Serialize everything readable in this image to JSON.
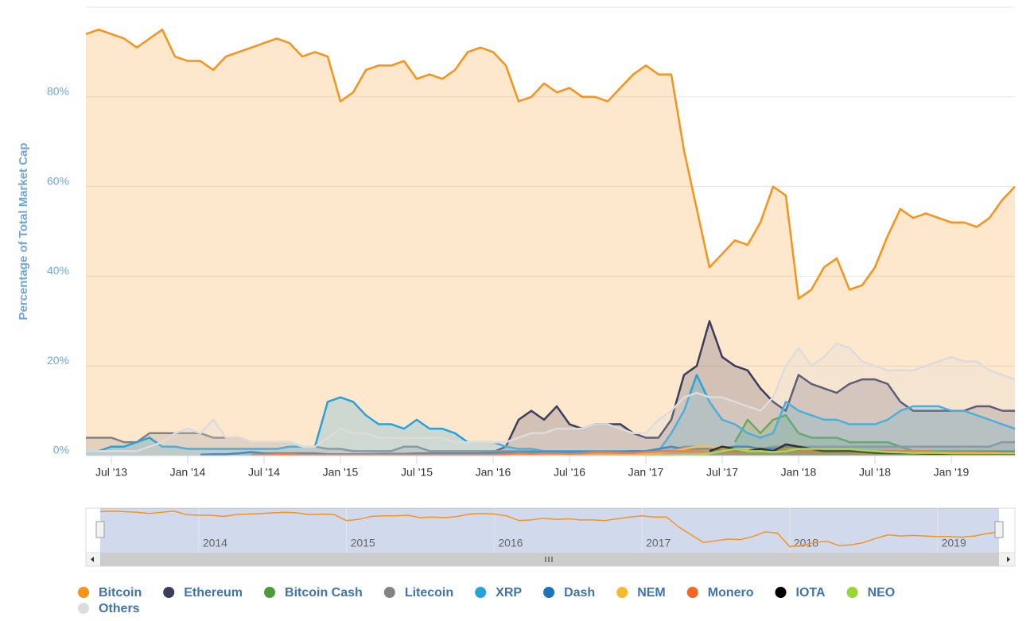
{
  "chart_data": {
    "type": "area",
    "y_axis_label": "Percentage of Total Market Cap",
    "x": [
      "2013-05",
      "2013-06",
      "2013-07",
      "2013-08",
      "2013-09",
      "2013-10",
      "2013-11",
      "2013-12",
      "2014-01",
      "2014-02",
      "2014-03",
      "2014-04",
      "2014-05",
      "2014-06",
      "2014-07",
      "2014-08",
      "2014-09",
      "2014-10",
      "2014-11",
      "2014-12",
      "2015-01",
      "2015-02",
      "2015-03",
      "2015-04",
      "2015-05",
      "2015-06",
      "2015-07",
      "2015-08",
      "2015-09",
      "2015-10",
      "2015-11",
      "2015-12",
      "2016-01",
      "2016-02",
      "2016-03",
      "2016-04",
      "2016-05",
      "2016-06",
      "2016-07",
      "2016-08",
      "2016-09",
      "2016-10",
      "2016-11",
      "2016-12",
      "2017-01",
      "2017-02",
      "2017-03",
      "2017-04",
      "2017-05",
      "2017-06",
      "2017-07",
      "2017-08",
      "2017-09",
      "2017-10",
      "2017-11",
      "2017-12",
      "2018-01",
      "2018-02",
      "2018-03",
      "2018-04",
      "2018-05",
      "2018-06",
      "2018-07",
      "2018-08",
      "2018-09",
      "2018-10",
      "2018-11",
      "2018-12",
      "2019-01",
      "2019-02",
      "2019-03",
      "2019-04",
      "2019-05",
      "2019-06"
    ],
    "xlim": [
      "2013-05",
      "2019-06"
    ],
    "xticks": [
      {
        "value": "2013-07",
        "label": "Jul '13"
      },
      {
        "value": "2014-01",
        "label": "Jan '14"
      },
      {
        "value": "2014-07",
        "label": "Jul '14"
      },
      {
        "value": "2015-01",
        "label": "Jan '15"
      },
      {
        "value": "2015-07",
        "label": "Jul '15"
      },
      {
        "value": "2016-01",
        "label": "Jan '16"
      },
      {
        "value": "2016-07",
        "label": "Jul '16"
      },
      {
        "value": "2017-01",
        "label": "Jan '17"
      },
      {
        "value": "2017-07",
        "label": "Jul '17"
      },
      {
        "value": "2018-01",
        "label": "Jan '18"
      },
      {
        "value": "2018-07",
        "label": "Jul '18"
      },
      {
        "value": "2019-01",
        "label": "Jan '19"
      }
    ],
    "ylim": [
      0,
      100
    ],
    "yticks": [
      {
        "value": 0,
        "label": "0%"
      },
      {
        "value": 20,
        "label": "20%"
      },
      {
        "value": 40,
        "label": "40%"
      },
      {
        "value": 60,
        "label": "60%"
      },
      {
        "value": 80,
        "label": "80%"
      }
    ],
    "grid": true,
    "legend": "bottom",
    "series": [
      {
        "name": "Bitcoin",
        "color": "#f7931a",
        "values": [
          94,
          95,
          94,
          93,
          91,
          93,
          95,
          89,
          88,
          88,
          86,
          89,
          90,
          91,
          92,
          93,
          92,
          89,
          90,
          89,
          79,
          81,
          86,
          87,
          87,
          88,
          84,
          85,
          84,
          86,
          90,
          91,
          90,
          87,
          79,
          80,
          83,
          81,
          82,
          80,
          80,
          79,
          82,
          85,
          87,
          85,
          85,
          68,
          55,
          42,
          45,
          48,
          47,
          52,
          60,
          58,
          35,
          37,
          42,
          44,
          37,
          38,
          42,
          49,
          55,
          53,
          54,
          53,
          52,
          52,
          51,
          53,
          57,
          60
        ]
      },
      {
        "name": "Ethereum",
        "color": "#3c3c5d",
        "values": [
          null,
          null,
          null,
          null,
          null,
          null,
          null,
          null,
          null,
          null,
          null,
          null,
          null,
          null,
          null,
          null,
          null,
          null,
          null,
          null,
          null,
          null,
          null,
          null,
          null,
          null,
          null,
          0.5,
          0.5,
          0.3,
          0.3,
          0.5,
          0.8,
          2,
          8,
          10,
          8,
          11,
          7,
          6,
          7,
          7,
          7,
          5,
          4,
          4,
          8,
          18,
          20,
          30,
          22,
          20,
          19,
          15,
          12,
          10,
          18,
          16,
          15,
          14,
          16,
          17,
          17,
          16,
          12,
          10,
          10,
          10,
          10,
          10,
          11,
          11,
          10,
          10
        ]
      },
      {
        "name": "Bitcoin Cash",
        "color": "#4b9b3a",
        "values": [
          null,
          null,
          null,
          null,
          null,
          null,
          null,
          null,
          null,
          null,
          null,
          null,
          null,
          null,
          null,
          null,
          null,
          null,
          null,
          null,
          null,
          null,
          null,
          null,
          null,
          null,
          null,
          null,
          null,
          null,
          null,
          null,
          null,
          null,
          null,
          null,
          null,
          null,
          null,
          null,
          null,
          null,
          null,
          null,
          null,
          null,
          null,
          null,
          null,
          null,
          null,
          3,
          8,
          5,
          8,
          9,
          5,
          4,
          4,
          4,
          3,
          3,
          3,
          3,
          2,
          1,
          1,
          1,
          1,
          1,
          1,
          1,
          1,
          1
        ]
      },
      {
        "name": "Litecoin",
        "color": "#838383",
        "values": [
          4,
          4,
          4,
          3,
          3,
          5,
          5,
          5,
          5,
          5,
          4,
          4,
          4,
          3,
          3,
          3,
          3,
          2,
          2,
          1.5,
          1.5,
          1,
          1,
          1,
          1,
          2,
          2,
          1,
          1,
          1,
          1,
          1,
          1,
          1,
          1,
          1,
          1,
          1,
          1,
          1,
          1,
          1,
          1,
          1,
          1,
          1,
          1,
          2,
          2,
          1.5,
          1.8,
          2,
          2,
          1.5,
          2,
          2,
          2,
          2,
          2,
          2,
          2,
          2,
          2,
          2,
          2,
          2,
          2,
          2,
          2,
          2,
          2,
          2,
          3,
          3
        ]
      },
      {
        "name": "XRP",
        "color": "#27a2db",
        "values": [
          1,
          1,
          2,
          2,
          3,
          4,
          2,
          2,
          1.5,
          1.5,
          1.5,
          1.5,
          1.5,
          1.5,
          1.5,
          1.5,
          2,
          2,
          2,
          12,
          13,
          12,
          9,
          7,
          7,
          6,
          8,
          6,
          6,
          5,
          3,
          3,
          3,
          2,
          1.5,
          1.5,
          1,
          1,
          1,
          1,
          1,
          1,
          1,
          1,
          1,
          1,
          5,
          10,
          18,
          12,
          8,
          7,
          5,
          4,
          5,
          12,
          10,
          9,
          8,
          8,
          7,
          7,
          7,
          8,
          10,
          11,
          11,
          11,
          10,
          10,
          9,
          8,
          7,
          6
        ]
      },
      {
        "name": "Dash",
        "color": "#1c75bc",
        "values": [
          null,
          null,
          null,
          null,
          null,
          null,
          null,
          null,
          null,
          0.2,
          0.3,
          0.3,
          0.5,
          0.8,
          0.5,
          0.5,
          0.5,
          0.5,
          0.5,
          0.3,
          0.3,
          0.3,
          0.3,
          0.4,
          0.4,
          0.4,
          0.5,
          0.5,
          0.5,
          0.5,
          0.5,
          0.5,
          0.6,
          0.6,
          0.7,
          0.8,
          0.8,
          0.8,
          0.8,
          0.8,
          0.8,
          0.8,
          0.8,
          1,
          1,
          1.5,
          2,
          1.5,
          1.5,
          1.5,
          1.5,
          2,
          2,
          1.5,
          1.5,
          1.5,
          1.5,
          1.5,
          1.5,
          1.5,
          1.5,
          1.2,
          1,
          1,
          1,
          1,
          0.8,
          0.8,
          0.8,
          0.8,
          0.8,
          0.8,
          0.8,
          0.8
        ]
      },
      {
        "name": "NEM",
        "color": "#f9b82e",
        "values": [
          null,
          null,
          null,
          null,
          null,
          null,
          null,
          null,
          null,
          null,
          null,
          null,
          null,
          null,
          null,
          null,
          null,
          null,
          null,
          null,
          null,
          null,
          null,
          0.1,
          0.1,
          0.1,
          0.1,
          0.1,
          0.1,
          0.1,
          0.1,
          0.1,
          0.1,
          0.1,
          0.1,
          0.1,
          0.1,
          0.2,
          0.2,
          0.2,
          0.2,
          0.2,
          0.2,
          0.2,
          0.3,
          0.5,
          1,
          1.5,
          2,
          2,
          1.5,
          1.5,
          1.5,
          1,
          1,
          1.5,
          1.5,
          1,
          1,
          1,
          0.8,
          0.6,
          0.5,
          0.4,
          0.4,
          0.4,
          0.3,
          0.3,
          0.3,
          0.3,
          0.3,
          0.3,
          0.3,
          0.3
        ]
      },
      {
        "name": "Monero",
        "color": "#f26822",
        "values": [
          null,
          null,
          null,
          null,
          null,
          null,
          null,
          null,
          null,
          null,
          null,
          null,
          null,
          0.2,
          0.2,
          0.3,
          0.3,
          0.2,
          0.2,
          0.2,
          0.2,
          0.2,
          0.2,
          0.2,
          0.2,
          0.2,
          0.2,
          0.2,
          0.2,
          0.2,
          0.2,
          0.2,
          0.2,
          0.3,
          0.5,
          0.4,
          0.5,
          0.5,
          0.4,
          0.5,
          0.7,
          0.7,
          0.6,
          0.6,
          0.8,
          0.9,
          1,
          1,
          1,
          0.8,
          0.9,
          1,
          1,
          1,
          1,
          1.2,
          1,
          1,
          1,
          1,
          1,
          1,
          1,
          1,
          1,
          1,
          1,
          0.8,
          0.8,
          0.8,
          0.7,
          0.7,
          0.6,
          0.6
        ]
      },
      {
        "name": "IOTA",
        "color": "#000000",
        "values": [
          null,
          null,
          null,
          null,
          null,
          null,
          null,
          null,
          null,
          null,
          null,
          null,
          null,
          null,
          null,
          null,
          null,
          null,
          null,
          null,
          null,
          null,
          null,
          null,
          null,
          null,
          null,
          null,
          null,
          null,
          null,
          null,
          null,
          null,
          null,
          null,
          null,
          null,
          null,
          null,
          null,
          null,
          null,
          null,
          null,
          null,
          null,
          null,
          null,
          1,
          2,
          1.5,
          1,
          1.5,
          1,
          2.5,
          2,
          1.5,
          1,
          1,
          1,
          0.8,
          0.6,
          0.5,
          0.5,
          0.5,
          0.4,
          0.4,
          0.4,
          0.4,
          0.4,
          0.4,
          0.4,
          0.4
        ]
      },
      {
        "name": "NEO",
        "color": "#9ad436",
        "values": [
          null,
          null,
          null,
          null,
          null,
          null,
          null,
          null,
          null,
          null,
          null,
          null,
          null,
          null,
          null,
          null,
          null,
          null,
          null,
          null,
          null,
          null,
          null,
          null,
          null,
          null,
          null,
          null,
          null,
          null,
          null,
          null,
          null,
          null,
          null,
          null,
          null,
          null,
          null,
          null,
          null,
          null,
          null,
          null,
          0.1,
          0.1,
          0.1,
          0.2,
          0.2,
          0.5,
          1,
          1.5,
          1,
          1,
          0.8,
          1,
          1.5,
          1.5,
          1.5,
          1.5,
          1.5,
          1.2,
          1,
          0.8,
          0.7,
          0.6,
          0.6,
          0.6,
          0.5,
          0.5,
          0.5,
          0.5,
          0.5,
          0.5
        ]
      },
      {
        "name": "Others",
        "color": "#dcdcdc",
        "values": [
          1,
          1,
          1,
          1,
          1,
          2,
          3,
          5,
          6,
          5,
          8,
          4,
          4,
          3,
          3,
          3,
          3,
          2,
          2,
          4,
          6,
          5,
          5,
          4,
          4,
          4,
          4,
          4,
          4,
          3,
          3,
          3,
          3,
          3,
          4,
          5,
          5,
          6,
          6,
          6,
          7,
          7,
          6,
          5,
          5,
          8,
          10,
          13,
          14,
          13,
          13,
          12,
          11,
          10,
          13,
          20,
          24,
          20,
          22,
          25,
          24,
          21,
          20,
          19,
          19,
          19,
          20,
          21,
          22,
          21,
          21,
          19,
          18,
          17
        ]
      }
    ],
    "navigator": {
      "ylim": [
        25,
        100
      ],
      "xticks": [
        {
          "value": "2014-01",
          "label": "2014"
        },
        {
          "value": "2015-01",
          "label": "2015"
        },
        {
          "value": "2016-01",
          "label": "2016"
        },
        {
          "value": "2017-01",
          "label": "2017"
        },
        {
          "value": "2018-01",
          "label": "2018"
        },
        {
          "value": "2019-01",
          "label": "2019"
        }
      ]
    }
  }
}
